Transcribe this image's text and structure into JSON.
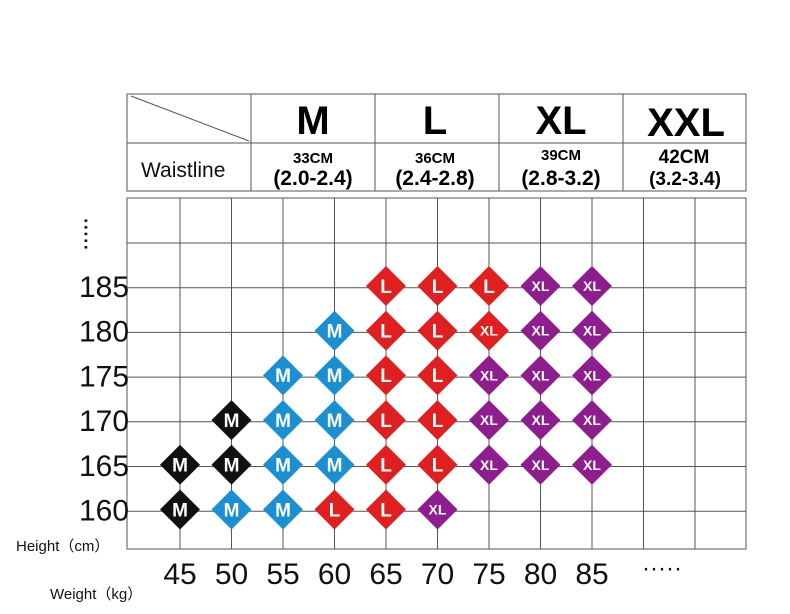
{
  "header": {
    "row_label": "Waistline",
    "columns": [
      {
        "size": "M",
        "cm": "33CM",
        "range": "(2.0-2.4)"
      },
      {
        "size": "L",
        "cm": "36CM",
        "range": "(2.4-2.8)"
      },
      {
        "size": "XL",
        "cm": "39CM",
        "range": "(2.8-3.2)"
      },
      {
        "size": "XXL",
        "cm": "42CM",
        "range": "(3.2-3.4)"
      }
    ]
  },
  "chart_data": {
    "type": "table",
    "xlabel": "Weight（kg）",
    "ylabel": "Height（cm）",
    "x_ticks": [
      "45",
      "50",
      "55",
      "60",
      "65",
      "70",
      "75",
      "80",
      "85"
    ],
    "y_ticks": [
      "185",
      "180",
      "175",
      "170",
      "165",
      "160"
    ],
    "x_continuation": "·····",
    "y_continuation": "·····",
    "size_colors": {
      "M_small": "#111111",
      "M": "#1a8fd1",
      "L": "#e02020",
      "XL": "#8e1d8e"
    },
    "points": [
      {
        "weight": 65,
        "height": 185,
        "size": "L",
        "color_key": "L"
      },
      {
        "weight": 70,
        "height": 185,
        "size": "L",
        "color_key": "L"
      },
      {
        "weight": 75,
        "height": 185,
        "size": "L",
        "color_key": "L"
      },
      {
        "weight": 80,
        "height": 185,
        "size": "XL",
        "color_key": "XL"
      },
      {
        "weight": 85,
        "height": 185,
        "size": "XL",
        "color_key": "XL"
      },
      {
        "weight": 60,
        "height": 180,
        "size": "M",
        "color_key": "M"
      },
      {
        "weight": 65,
        "height": 180,
        "size": "L",
        "color_key": "L"
      },
      {
        "weight": 70,
        "height": 180,
        "size": "L",
        "color_key": "L"
      },
      {
        "weight": 75,
        "height": 180,
        "size": "XL",
        "color_key": "L"
      },
      {
        "weight": 80,
        "height": 180,
        "size": "XL",
        "color_key": "XL"
      },
      {
        "weight": 85,
        "height": 180,
        "size": "XL",
        "color_key": "XL"
      },
      {
        "weight": 55,
        "height": 175,
        "size": "M",
        "color_key": "M"
      },
      {
        "weight": 60,
        "height": 175,
        "size": "M",
        "color_key": "M"
      },
      {
        "weight": 65,
        "height": 175,
        "size": "L",
        "color_key": "L"
      },
      {
        "weight": 70,
        "height": 175,
        "size": "L",
        "color_key": "L"
      },
      {
        "weight": 75,
        "height": 175,
        "size": "XL",
        "color_key": "XL"
      },
      {
        "weight": 80,
        "height": 175,
        "size": "XL",
        "color_key": "XL"
      },
      {
        "weight": 85,
        "height": 175,
        "size": "XL",
        "color_key": "XL"
      },
      {
        "weight": 50,
        "height": 170,
        "size": "M",
        "color_key": "M_small"
      },
      {
        "weight": 55,
        "height": 170,
        "size": "M",
        "color_key": "M"
      },
      {
        "weight": 60,
        "height": 170,
        "size": "M",
        "color_key": "M"
      },
      {
        "weight": 65,
        "height": 170,
        "size": "L",
        "color_key": "L"
      },
      {
        "weight": 70,
        "height": 170,
        "size": "L",
        "color_key": "L"
      },
      {
        "weight": 75,
        "height": 170,
        "size": "XL",
        "color_key": "XL"
      },
      {
        "weight": 80,
        "height": 170,
        "size": "XL",
        "color_key": "XL"
      },
      {
        "weight": 85,
        "height": 170,
        "size": "XL",
        "color_key": "XL"
      },
      {
        "weight": 45,
        "height": 165,
        "size": "M",
        "color_key": "M_small"
      },
      {
        "weight": 50,
        "height": 165,
        "size": "M",
        "color_key": "M_small"
      },
      {
        "weight": 55,
        "height": 165,
        "size": "M",
        "color_key": "M"
      },
      {
        "weight": 60,
        "height": 165,
        "size": "M",
        "color_key": "M"
      },
      {
        "weight": 65,
        "height": 165,
        "size": "L",
        "color_key": "L"
      },
      {
        "weight": 70,
        "height": 165,
        "size": "L",
        "color_key": "L"
      },
      {
        "weight": 75,
        "height": 165,
        "size": "XL",
        "color_key": "XL"
      },
      {
        "weight": 80,
        "height": 165,
        "size": "XL",
        "color_key": "XL"
      },
      {
        "weight": 85,
        "height": 165,
        "size": "XL",
        "color_key": "XL"
      },
      {
        "weight": 45,
        "height": 160,
        "size": "M",
        "color_key": "M_small"
      },
      {
        "weight": 50,
        "height": 160,
        "size": "M",
        "color_key": "M"
      },
      {
        "weight": 55,
        "height": 160,
        "size": "M",
        "color_key": "M"
      },
      {
        "weight": 60,
        "height": 160,
        "size": "L",
        "color_key": "L"
      },
      {
        "weight": 65,
        "height": 160,
        "size": "L",
        "color_key": "L"
      },
      {
        "weight": 70,
        "height": 160,
        "size": "XL",
        "color_key": "XL"
      }
    ]
  }
}
